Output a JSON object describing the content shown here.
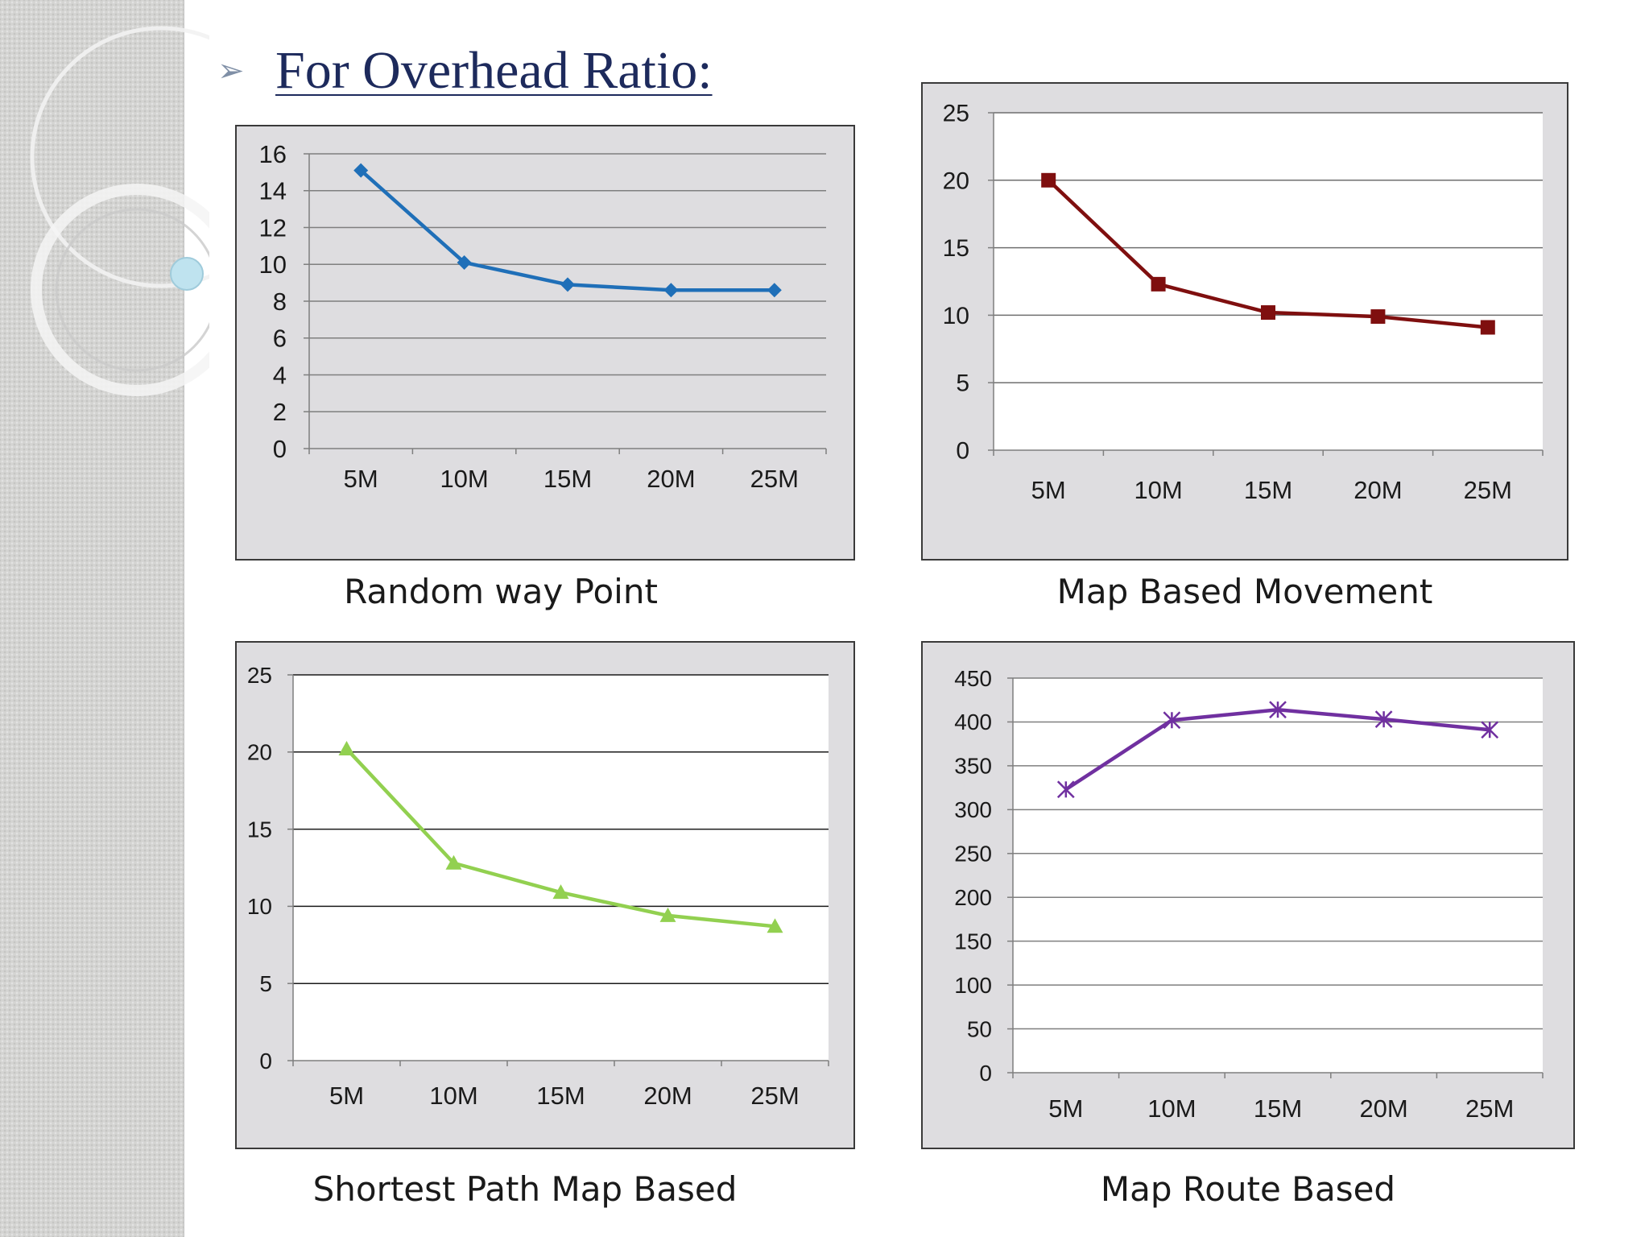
{
  "slide": {
    "bullet_glyph": "➢",
    "title": "For Overhead Ratio:"
  },
  "captions": {
    "chart1": "Random way Point",
    "chart2": "Map Based Movement",
    "chart3": "Shortest Path Map Based",
    "chart4": "Map Route Based"
  },
  "chart_data": [
    {
      "id": "random-way-point",
      "type": "line",
      "title": "Random way Point",
      "categories": [
        "5M",
        "10M",
        "15M",
        "20M",
        "25M"
      ],
      "series": [
        {
          "name": "Overhead Ratio",
          "values": [
            15.1,
            10.1,
            8.9,
            8.6,
            8.6
          ]
        }
      ],
      "ylim": [
        0,
        16
      ],
      "yticks": [
        0,
        2,
        4,
        6,
        8,
        10,
        12,
        14,
        16
      ],
      "color": "#1f6fb8",
      "marker": "diamond",
      "xlabel": "",
      "ylabel": "",
      "grid": true
    },
    {
      "id": "map-based-movement",
      "type": "line",
      "title": "Map Based Movement",
      "categories": [
        "5M",
        "10M",
        "15M",
        "20M",
        "25M"
      ],
      "series": [
        {
          "name": "Overhead Ratio",
          "values": [
            20.0,
            12.3,
            10.2,
            9.9,
            9.1
          ]
        }
      ],
      "ylim": [
        0,
        25
      ],
      "yticks": [
        0,
        5,
        10,
        15,
        20,
        25
      ],
      "color": "#7f0f0f",
      "marker": "square",
      "xlabel": "",
      "ylabel": "",
      "grid": true
    },
    {
      "id": "shortest-path-map-based",
      "type": "line",
      "title": "Shortest Path Map Based",
      "categories": [
        "5M",
        "10M",
        "15M",
        "20M",
        "25M"
      ],
      "series": [
        {
          "name": "Overhead Ratio",
          "values": [
            20.2,
            12.8,
            10.9,
            9.4,
            8.7
          ]
        }
      ],
      "ylim": [
        0,
        25
      ],
      "yticks": [
        0,
        5,
        10,
        15,
        20,
        25
      ],
      "color": "#92d050",
      "marker": "triangle",
      "xlabel": "",
      "ylabel": "",
      "grid": true
    },
    {
      "id": "map-route-based",
      "type": "line",
      "title": "Map Route Based",
      "categories": [
        "5M",
        "10M",
        "15M",
        "20M",
        "25M"
      ],
      "series": [
        {
          "name": "Overhead Ratio",
          "values": [
            323,
            402,
            414,
            403,
            391
          ]
        }
      ],
      "ylim": [
        0,
        450
      ],
      "yticks": [
        0,
        50,
        100,
        150,
        200,
        250,
        300,
        350,
        400,
        450
      ],
      "color": "#7030a0",
      "marker": "star",
      "xlabel": "",
      "ylabel": "",
      "grid": true
    }
  ]
}
